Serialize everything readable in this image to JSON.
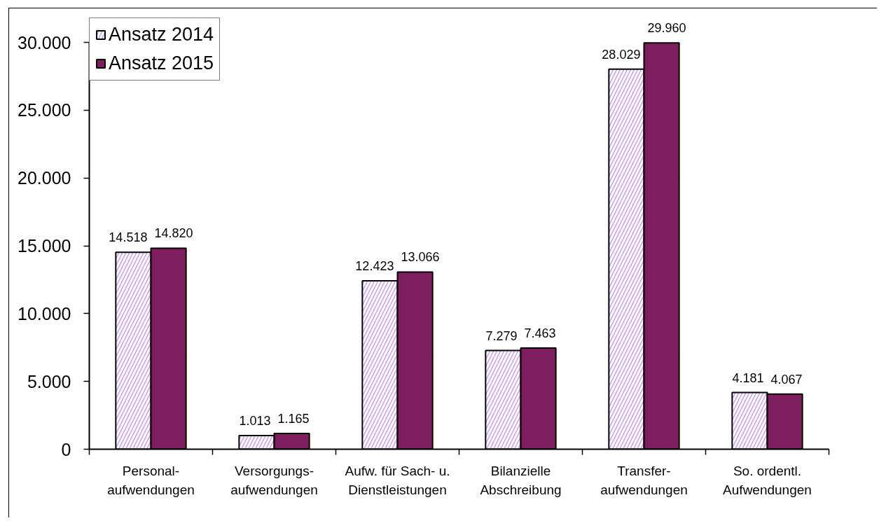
{
  "chart_data": {
    "type": "bar",
    "categories": [
      "Personal-\naufwendungen",
      "Versorgungs-\naufwendungen",
      "Aufw. für Sach- u.\nDienstleistungen",
      "Bilanzielle\nAbschreibung",
      "Transfer-\naufwendungen",
      "So. ordentl.\nAufwendungen"
    ],
    "series": [
      {
        "name": "Ansatz 2014",
        "color": "#cc99ff",
        "values": [
          14518,
          1013,
          12423,
          7279,
          28029,
          4181
        ],
        "value_labels": [
          "14.518",
          "1.013",
          "12.423",
          "7.279",
          "28.029",
          "4.181"
        ]
      },
      {
        "name": "Ansatz 2015",
        "color": "#7f1f5f",
        "values": [
          14820,
          1165,
          13066,
          7463,
          29960,
          4067
        ],
        "value_labels": [
          "14.820",
          "1.165",
          "13.066",
          "7.463",
          "29.960",
          "4.067"
        ]
      }
    ],
    "ylim": [
      0,
      30000
    ],
    "yticks": [
      0,
      {
        "value": 5000,
        "label": "5.000"
      },
      {
        "value": 10000,
        "label": "10.000"
      },
      {
        "value": 15000,
        "label": "15.000"
      },
      {
        "value": 20000,
        "label": "20.000"
      },
      {
        "value": 25000,
        "label": "25.000"
      },
      {
        "value": 30000,
        "label": "30.000"
      }
    ],
    "legend": "top left"
  }
}
